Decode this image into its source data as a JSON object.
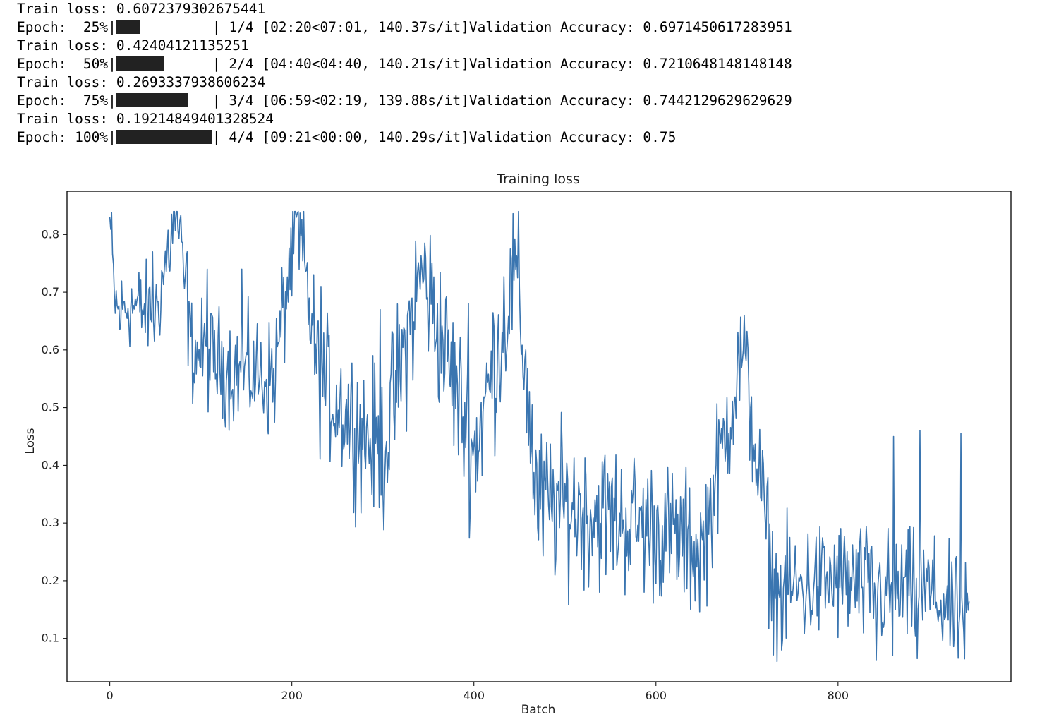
{
  "console": {
    "lines": [
      {
        "kind": "loss",
        "text": "Train loss: 0.6072379302675441"
      },
      {
        "kind": "epoch",
        "prefix": "Epoch:  25%|",
        "progress": 0.25,
        "suffix": "| 1/4 [02:20<07:01, 140.37s/it]Validation Accuracy: 0.6971450617283951"
      },
      {
        "kind": "loss",
        "text": "Train loss: 0.42404121135251"
      },
      {
        "kind": "epoch",
        "prefix": "Epoch:  50%|",
        "progress": 0.5,
        "suffix": "| 2/4 [04:40<04:40, 140.21s/it]Validation Accuracy: 0.7210648148148148"
      },
      {
        "kind": "loss",
        "text": "Train loss: 0.2693337938606234"
      },
      {
        "kind": "epoch",
        "prefix": "Epoch:  75%|",
        "progress": 0.75,
        "suffix": "| 3/4 [06:59<02:19, 139.88s/it]Validation Accuracy: 0.7442129629629629"
      },
      {
        "kind": "loss",
        "text": "Train loss: 0.19214849401328524"
      },
      {
        "kind": "epoch",
        "prefix": "Epoch: 100%|",
        "progress": 1.0,
        "suffix": "| 4/4 [09:21<00:00, 140.29s/it]Validation Accuracy: 0.75"
      }
    ]
  },
  "chart_data": {
    "type": "line",
    "title": "Training loss",
    "xlabel": "Batch",
    "ylabel": "Loss",
    "xlim": [
      -47,
      990
    ],
    "ylim": [
      0.025,
      0.875
    ],
    "xticks": [
      0,
      200,
      400,
      600,
      800
    ],
    "yticks": [
      0.1,
      0.2,
      0.3,
      0.4,
      0.5,
      0.6,
      0.7,
      0.8
    ],
    "grid": false,
    "line_color": "#3a75b0",
    "n_points": 945,
    "anchors": [
      [
        0,
        0.83
      ],
      [
        5,
        0.69
      ],
      [
        10,
        0.66
      ],
      [
        20,
        0.68
      ],
      [
        50,
        0.66
      ],
      [
        73,
        0.84
      ],
      [
        90,
        0.6
      ],
      [
        130,
        0.57
      ],
      [
        180,
        0.55
      ],
      [
        206,
        0.83
      ],
      [
        230,
        0.55
      ],
      [
        260,
        0.49
      ],
      [
        300,
        0.42
      ],
      [
        343,
        0.74
      ],
      [
        400,
        0.42
      ],
      [
        446,
        0.74
      ],
      [
        470,
        0.33
      ],
      [
        500,
        0.33
      ],
      [
        550,
        0.31
      ],
      [
        600,
        0.29
      ],
      [
        650,
        0.25
      ],
      [
        695,
        0.6
      ],
      [
        730,
        0.18
      ],
      [
        800,
        0.2
      ],
      [
        850,
        0.18
      ],
      [
        900,
        0.18
      ],
      [
        943,
        0.12
      ]
    ],
    "noise_amplitude": [
      [
        0,
        0.05
      ],
      [
        200,
        0.07
      ],
      [
        300,
        0.09
      ],
      [
        460,
        0.09
      ],
      [
        700,
        0.075
      ],
      [
        943,
        0.065
      ]
    ],
    "spikes": [
      [
        0,
        0.83
      ],
      [
        47,
        0.77
      ],
      [
        73,
        0.84
      ],
      [
        85,
        0.77
      ],
      [
        107,
        0.74
      ],
      [
        145,
        0.74
      ],
      [
        205,
        0.83
      ],
      [
        208,
        0.74
      ],
      [
        232,
        0.71
      ],
      [
        297,
        0.67
      ],
      [
        343,
        0.74
      ],
      [
        394,
        0.68
      ],
      [
        446,
        0.74
      ],
      [
        457,
        0.6
      ],
      [
        696,
        0.6
      ],
      [
        704,
        0.5
      ],
      [
        861,
        0.45
      ],
      [
        890,
        0.46
      ],
      [
        935,
        0.455
      ],
      [
        738,
        0.08
      ],
      [
        860,
        0.07
      ],
      [
        887,
        0.065
      ],
      [
        842,
        0.063
      ]
    ]
  }
}
